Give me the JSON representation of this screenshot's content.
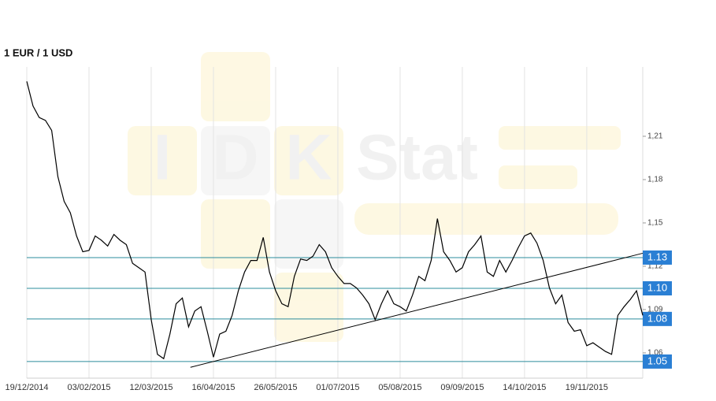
{
  "chart_data": {
    "type": "line",
    "title": "1 EUR / 1 USD",
    "watermark": [
      "I",
      "D",
      "K",
      "Stat"
    ],
    "categories": [
      "19/12/2014",
      null,
      null,
      null,
      null,
      null,
      null,
      null,
      null,
      null,
      "03/02/2015",
      null,
      null,
      null,
      null,
      null,
      null,
      null,
      null,
      null,
      "12/03/2015",
      null,
      null,
      null,
      null,
      null,
      null,
      null,
      null,
      null,
      "16/04/2015",
      null,
      null,
      null,
      null,
      null,
      null,
      null,
      null,
      null,
      "26/05/2015",
      null,
      null,
      null,
      null,
      null,
      null,
      null,
      null,
      null,
      "01/07/2015",
      null,
      null,
      null,
      null,
      null,
      null,
      null,
      null,
      null,
      "05/08/2015",
      null,
      null,
      null,
      null,
      null,
      null,
      null,
      null,
      null,
      "09/09/2015",
      null,
      null,
      null,
      null,
      null,
      null,
      null,
      null,
      null,
      "14/10/2015",
      null,
      null,
      null,
      null,
      null,
      null,
      null,
      null,
      null,
      "19/11/2015",
      null,
      null,
      null,
      null,
      null,
      null,
      null,
      null,
      null
    ],
    "series": [
      {
        "color": "#000000",
        "values": [
          1.248,
          1.231,
          1.223,
          1.221,
          1.214,
          1.182,
          1.165,
          1.157,
          1.141,
          1.13,
          1.131,
          1.141,
          1.138,
          1.134,
          1.142,
          1.138,
          1.135,
          1.122,
          1.119,
          1.116,
          1.083,
          1.059,
          1.056,
          1.073,
          1.094,
          1.098,
          1.078,
          1.089,
          1.092,
          1.075,
          1.057,
          1.073,
          1.075,
          1.086,
          1.103,
          1.116,
          1.124,
          1.124,
          1.14,
          1.116,
          1.103,
          1.094,
          1.092,
          1.113,
          1.125,
          1.124,
          1.127,
          1.135,
          1.13,
          1.119,
          1.113,
          1.108,
          1.108,
          1.105,
          1.1,
          1.094,
          1.083,
          1.094,
          1.103,
          1.094,
          1.092,
          1.089,
          1.1,
          1.113,
          1.11,
          1.124,
          1.153,
          1.13,
          1.124,
          1.116,
          1.119,
          1.13,
          1.135,
          1.141,
          1.116,
          1.113,
          1.124,
          1.116,
          1.124,
          1.133,
          1.141,
          1.143,
          1.136,
          1.124,
          1.105,
          1.094,
          1.1,
          1.081,
          1.075,
          1.076,
          1.065,
          1.067,
          1.064,
          1.061,
          1.059,
          1.086,
          1.092,
          1.097,
          1.103,
          1.086
        ]
      }
    ],
    "ylim": [
      1.0425,
      1.258
    ],
    "yticks": [
      1.06,
      1.09,
      1.12,
      1.15,
      1.18,
      1.21
    ],
    "ytick_labels_decimal_comma": true,
    "levels": {
      "color": "#2b8c9c",
      "label_color": "#2a7fd4",
      "values": [
        1.126,
        1.1047,
        1.0835,
        1.054
      ],
      "value_labels": [
        "1.13",
        "1.10",
        "1.08",
        "1.05"
      ]
    },
    "trend_line": {
      "color": "#000000",
      "x": [
        26.3,
        99
      ],
      "values": [
        1.05,
        1.129
      ]
    },
    "grid": true
  }
}
